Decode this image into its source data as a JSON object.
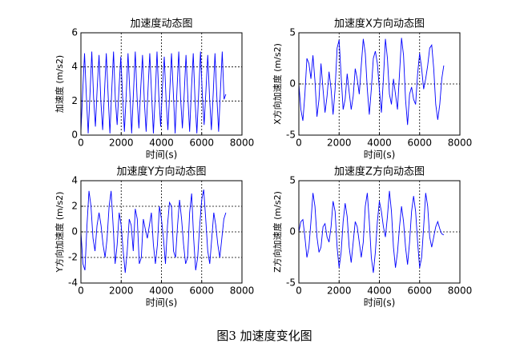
{
  "chart_data": [
    {
      "type": "line",
      "title": "加速度动态图",
      "xlabel": "时间(s)",
      "ylabel": "加速度 (m/s2)",
      "grid": true,
      "xlim": [
        0,
        8000
      ],
      "xticks": [
        0,
        2000,
        4000,
        6000,
        8000
      ],
      "ylim": [
        0,
        6
      ],
      "yticks": [
        0,
        2,
        4,
        6
      ],
      "x": [
        0,
        90,
        180,
        270,
        360,
        450,
        540,
        630,
        720,
        810,
        900,
        990,
        1080,
        1170,
        1260,
        1350,
        1440,
        1530,
        1620,
        1710,
        1800,
        1890,
        1980,
        2070,
        2160,
        2250,
        2340,
        2430,
        2520,
        2610,
        2700,
        2790,
        2880,
        2970,
        3060,
        3150,
        3240,
        3330,
        3420,
        3510,
        3600,
        3690,
        3780,
        3870,
        3960,
        4050,
        4140,
        4230,
        4320,
        4410,
        4500,
        4590,
        4680,
        4770,
        4860,
        4950,
        5040,
        5130,
        5220,
        5310,
        5400,
        5490,
        5580,
        5670,
        5760,
        5850,
        5940,
        6030,
        6120,
        6210,
        6300,
        6390,
        6480,
        6570,
        6660,
        6750,
        6840,
        6930,
        7020,
        7110,
        7200
      ],
      "series": [
        {
          "color": "#0000ff",
          "values": [
            0.2,
            2.6,
            4.8,
            2.3,
            0.1,
            2.4,
            4.9,
            2.2,
            0.5,
            2.8,
            4.7,
            2.0,
            0.3,
            2.5,
            4.8,
            2.4,
            0.1,
            2.6,
            4.9,
            2.1,
            0.6,
            2.7,
            4.6,
            2.3,
            0.2,
            2.4,
            4.8,
            2.5,
            0.1,
            2.5,
            4.9,
            2.2,
            0.4,
            2.7,
            4.7,
            2.0,
            0.2,
            2.6,
            4.8,
            2.4,
            0.1,
            2.3,
            4.9,
            2.3,
            0.5,
            2.8,
            4.6,
            2.1,
            0.3,
            2.5,
            4.8,
            2.5,
            0.1,
            2.6,
            4.9,
            2.2,
            0.4,
            2.4,
            4.7,
            2.3,
            0.2,
            2.7,
            4.8,
            2.0,
            0.1,
            2.5,
            4.9,
            2.4,
            0.6,
            2.6,
            4.7,
            2.2,
            0.3,
            2.4,
            4.8,
            2.3,
            0.2,
            2.6,
            4.9,
            2.1,
            2.4
          ]
        }
      ]
    },
    {
      "type": "line",
      "title": "加速度X方向动态图",
      "xlabel": "时间(s)",
      "ylabel": "X方向加速度 (m/s2)",
      "grid": true,
      "xlim": [
        0,
        8000
      ],
      "xticks": [
        0,
        2000,
        4000,
        6000,
        8000
      ],
      "ylim": [
        -5,
        5
      ],
      "yticks": [
        -5,
        0,
        5
      ],
      "x": [
        0,
        100,
        200,
        300,
        400,
        500,
        600,
        700,
        800,
        900,
        1000,
        1100,
        1200,
        1300,
        1400,
        1500,
        1600,
        1700,
        1800,
        1900,
        2000,
        2100,
        2200,
        2300,
        2400,
        2500,
        2600,
        2700,
        2800,
        2900,
        3000,
        3100,
        3200,
        3300,
        3400,
        3500,
        3600,
        3700,
        3800,
        3900,
        4000,
        4100,
        4200,
        4300,
        4400,
        4500,
        4600,
        4700,
        4800,
        4900,
        5000,
        5100,
        5200,
        5300,
        5400,
        5500,
        5600,
        5700,
        5800,
        5900,
        6000,
        6100,
        6200,
        6300,
        6400,
        6500,
        6600,
        6700,
        6800,
        6900,
        7000,
        7100,
        7200
      ],
      "series": [
        {
          "color": "#0000ff",
          "values": [
            0,
            -2.5,
            -3.6,
            -1,
            2.5,
            2.0,
            0.5,
            2.8,
            0.3,
            -3.2,
            -1.5,
            2.0,
            -0.5,
            -2.8,
            -1.2,
            1.2,
            -0.5,
            -3.0,
            -0.5,
            3.5,
            4.3,
            0.8,
            -2.5,
            -1.5,
            1.0,
            -0.8,
            -2.5,
            -1.2,
            1.5,
            0.5,
            -1.0,
            1.8,
            4.4,
            3.0,
            -0.5,
            -3.0,
            -0.5,
            2.5,
            3.2,
            2.0,
            -0.5,
            -2.8,
            0.5,
            4.4,
            2.5,
            -1.0,
            -2.0,
            0.5,
            -1.0,
            -2.5,
            1.0,
            4.5,
            2.8,
            -1.5,
            -4.0,
            -1.0,
            -0.3,
            -1.5,
            -2.0,
            1.0,
            3.0,
            1.5,
            -0.5,
            0.5,
            1.8,
            3.5,
            3.8,
            1.5,
            -2.0,
            -3.5,
            -2.0,
            0.5,
            1.8
          ]
        }
      ]
    },
    {
      "type": "line",
      "title": "加速度Y方向动态图",
      "xlabel": "时间(s)",
      "ylabel": "Y方向加速度 (m/s2)",
      "grid": true,
      "xlim": [
        0,
        8000
      ],
      "xticks": [
        0,
        2000,
        4000,
        6000,
        8000
      ],
      "ylim": [
        -4,
        4
      ],
      "yticks": [
        -4,
        -2,
        0,
        2,
        4
      ],
      "x": [
        0,
        100,
        200,
        300,
        400,
        500,
        600,
        700,
        800,
        900,
        1000,
        1100,
        1200,
        1300,
        1400,
        1500,
        1600,
        1700,
        1800,
        1900,
        2000,
        2100,
        2200,
        2300,
        2400,
        2500,
        2600,
        2700,
        2800,
        2900,
        3000,
        3100,
        3200,
        3300,
        3400,
        3500,
        3600,
        3700,
        3800,
        3900,
        4000,
        4100,
        4200,
        4300,
        4400,
        4500,
        4600,
        4700,
        4800,
        4900,
        5000,
        5100,
        5200,
        5300,
        5400,
        5500,
        5600,
        5700,
        5800,
        5900,
        6000,
        6100,
        6200,
        6300,
        6400,
        6500,
        6600,
        6700,
        6800,
        6900,
        7000,
        7100,
        7200
      ],
      "series": [
        {
          "color": "#0000ff",
          "values": [
            0,
            -2.5,
            -3.0,
            0.5,
            3.2,
            2.0,
            -0.5,
            -1.5,
            0.5,
            1.5,
            0.5,
            -1.0,
            -2.0,
            -0.5,
            2.0,
            3.2,
            0.5,
            -2.5,
            -1.0,
            1.5,
            0.5,
            -1.5,
            -3.2,
            -1.5,
            1.0,
            0.5,
            -1.5,
            1.8,
            1.0,
            -2.5,
            -2.0,
            1.0,
            0.2,
            -0.5,
            0.5,
            1.5,
            -1.0,
            -2.5,
            -1.0,
            2.0,
            1.0,
            -0.5,
            -2.5,
            0.5,
            2.3,
            2.0,
            -1.5,
            -2.0,
            0.5,
            2.5,
            1.0,
            -1.0,
            -2.5,
            -2.0,
            1.5,
            3.0,
            -0.5,
            -3.0,
            -2.0,
            0.5,
            2.5,
            3.3,
            1.0,
            -1.5,
            -2.5,
            -0.5,
            1.5,
            0.5,
            -1.0,
            -2.0,
            -0.5,
            1.0,
            1.5
          ]
        }
      ]
    },
    {
      "type": "line",
      "title": "加速度Z方向动态图",
      "xlabel": "时间(s)",
      "ylabel": "Z方向加速度 (m/s2)",
      "grid": true,
      "xlim": [
        0,
        8000
      ],
      "xticks": [
        0,
        2000,
        4000,
        6000,
        8000
      ],
      "ylim": [
        -5,
        5
      ],
      "yticks": [
        -5,
        0,
        5
      ],
      "x": [
        0,
        100,
        200,
        300,
        400,
        500,
        600,
        700,
        800,
        900,
        1000,
        1100,
        1200,
        1300,
        1400,
        1500,
        1600,
        1700,
        1800,
        1900,
        2000,
        2100,
        2200,
        2300,
        2400,
        2500,
        2600,
        2700,
        2800,
        2900,
        3000,
        3100,
        3200,
        3300,
        3400,
        3500,
        3600,
        3700,
        3800,
        3900,
        4000,
        4100,
        4200,
        4300,
        4400,
        4500,
        4600,
        4700,
        4800,
        4900,
        5000,
        5100,
        5200,
        5300,
        5400,
        5500,
        5600,
        5700,
        5800,
        5900,
        6000,
        6100,
        6200,
        6300,
        6400,
        6500,
        6600,
        6700,
        6800,
        6900,
        7000,
        7100,
        7200
      ],
      "series": [
        {
          "color": "#0000ff",
          "values": [
            0,
            1.0,
            1.2,
            -0.5,
            -2.5,
            -1.5,
            1.0,
            3.8,
            2.5,
            -0.5,
            -2.0,
            -1.5,
            0.5,
            0.8,
            -0.5,
            -1.0,
            0.5,
            3.0,
            2.0,
            -1.5,
            -3.5,
            -2.0,
            1.0,
            2.8,
            1.5,
            -1.5,
            -3.0,
            -1.0,
            1.0,
            0.5,
            -1.0,
            -2.5,
            -1.0,
            2.5,
            3.8,
            1.0,
            -2.5,
            -4.0,
            -2.0,
            1.0,
            3.0,
            2.0,
            0.5,
            -0.5,
            1.5,
            4.0,
            2.0,
            -1.5,
            -3.5,
            -2.0,
            0.5,
            2.5,
            1.0,
            -1.5,
            -3.2,
            -1.0,
            2.0,
            3.5,
            2.0,
            -1.0,
            -3.5,
            -2.5,
            0.5,
            3.8,
            2.5,
            -0.5,
            -1.5,
            -0.5,
            0.5,
            1.0,
            0.3,
            -0.2,
            -0.3
          ]
        }
      ]
    }
  ],
  "caption": "图3 加速度变化图"
}
